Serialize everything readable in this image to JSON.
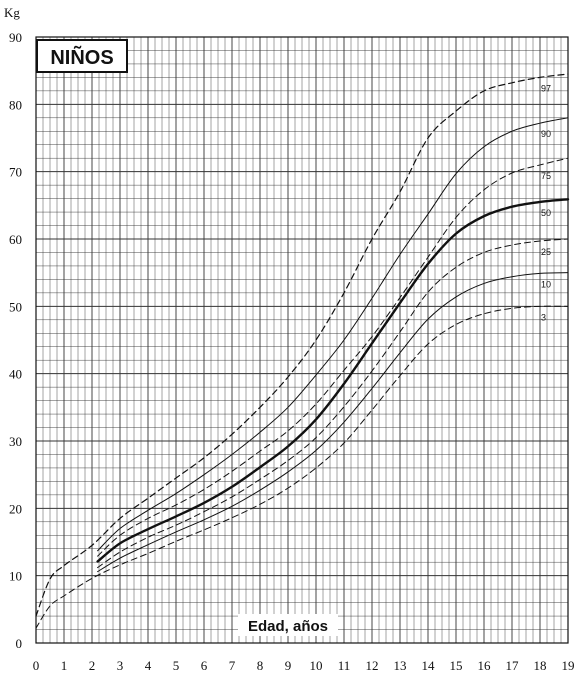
{
  "chart_data": {
    "type": "line",
    "title": "NIÑOS",
    "xlabel": "Edad, años",
    "ylabel": "Kg",
    "xlim": [
      0,
      19
    ],
    "ylim": [
      0,
      90
    ],
    "x_ticks": [
      0,
      1,
      2,
      3,
      4,
      5,
      6,
      7,
      8,
      9,
      10,
      11,
      12,
      13,
      14,
      15,
      16,
      17,
      18,
      19
    ],
    "y_ticks": [
      0,
      10,
      20,
      30,
      40,
      50,
      60,
      70,
      80,
      90
    ],
    "grid": true,
    "series": [
      {
        "name": "97",
        "style": "dashed",
        "width": 1.2,
        "x": [
          0,
          0.5,
          1,
          2,
          3,
          4,
          5,
          6,
          7,
          8,
          9,
          10,
          11,
          12,
          13,
          14,
          15,
          16,
          17,
          18,
          19
        ],
        "y": [
          4.0,
          9.5,
          11.5,
          14.5,
          18.5,
          21.5,
          24.5,
          27.5,
          31,
          35,
          39.5,
          45,
          52,
          60,
          67,
          75,
          79,
          82,
          83.2,
          84,
          84.5
        ]
      },
      {
        "name": "90",
        "style": "solid",
        "width": 1.0,
        "x": [
          2.2,
          3,
          4,
          5,
          6,
          7,
          8,
          9,
          10,
          11,
          12,
          13,
          14,
          15,
          16,
          17,
          18,
          19
        ],
        "y": [
          13.7,
          17,
          19.7,
          22.2,
          25,
          28,
          31.3,
          35,
          39.8,
          45,
          51.2,
          57.7,
          63.7,
          69.7,
          73.7,
          76,
          77.2,
          78
        ]
      },
      {
        "name": "75",
        "style": "dashed",
        "width": 1.0,
        "x": [
          2.2,
          3,
          4,
          5,
          6,
          7,
          8,
          9,
          10,
          11,
          12,
          13,
          14,
          15,
          16,
          17,
          18,
          19
        ],
        "y": [
          12.9,
          16,
          18.5,
          20.5,
          22.8,
          25.5,
          28.5,
          31.5,
          35.5,
          40.5,
          45.5,
          51.3,
          57.3,
          63.2,
          67.3,
          69.8,
          71,
          72
        ]
      },
      {
        "name": "50",
        "style": "solid",
        "width": 2.4,
        "x": [
          2.2,
          3,
          4,
          5,
          6,
          7,
          8,
          9,
          10,
          11,
          12,
          13,
          14,
          15,
          16,
          17,
          18,
          19
        ],
        "y": [
          12.1,
          14.8,
          16.9,
          18.8,
          20.8,
          23.2,
          26.1,
          29.2,
          33.2,
          38.5,
          44.5,
          50.5,
          56.3,
          60.8,
          63.4,
          64.8,
          65.5,
          65.9
        ]
      },
      {
        "name": "25",
        "style": "dashed",
        "width": 1.0,
        "x": [
          2.2,
          3,
          4,
          5,
          6,
          7,
          8,
          9,
          10,
          11,
          12,
          13,
          14,
          15,
          16,
          17,
          18,
          19
        ],
        "y": [
          11.2,
          13.5,
          15.7,
          17.5,
          19.5,
          21.7,
          24.3,
          27.1,
          30.5,
          35.1,
          40.4,
          46.2,
          52.1,
          55.8,
          58,
          59.1,
          59.7,
          60
        ]
      },
      {
        "name": "10",
        "style": "solid",
        "width": 1.0,
        "x": [
          2.2,
          3,
          4,
          5,
          6,
          7,
          8,
          9,
          10,
          11,
          12,
          13,
          14,
          15,
          16,
          17,
          18,
          19
        ],
        "y": [
          10.6,
          12.6,
          14.6,
          16.5,
          18.3,
          20.3,
          22.7,
          25.4,
          28.6,
          32.8,
          37.8,
          43.1,
          48.1,
          51.4,
          53.4,
          54.4,
          54.9,
          55
        ]
      },
      {
        "name": "3",
        "style": "dashed",
        "width": 1.0,
        "x": [
          0,
          0.5,
          1,
          2,
          3,
          4,
          5,
          6,
          7,
          8,
          9,
          10,
          11,
          12,
          13,
          14,
          15,
          16,
          17,
          18,
          19
        ],
        "y": [
          2.2,
          5.5,
          7.0,
          9.6,
          11.6,
          13.3,
          15.1,
          16.8,
          18.6,
          20.6,
          23,
          26,
          29.7,
          34.6,
          39.7,
          44.4,
          47.3,
          48.9,
          49.7,
          50,
          50
        ]
      }
    ]
  }
}
